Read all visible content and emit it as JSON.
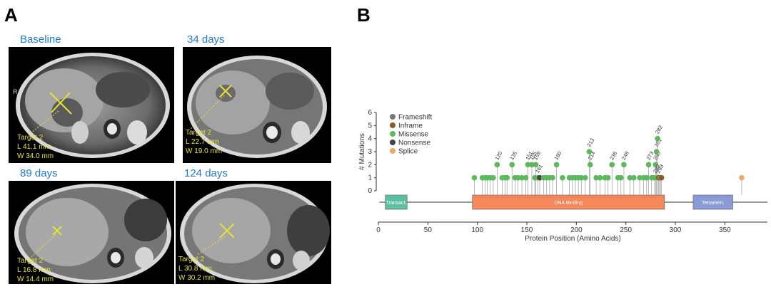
{
  "panels": {
    "a_letter": "A",
    "b_letter": "B"
  },
  "ct_scans": [
    {
      "label": "Baseline",
      "target": "Target 2",
      "length": "L 41.1 mm",
      "width": "W 34.0 mm"
    },
    {
      "label": "34 days",
      "target": "Target 2",
      "length": "L 22.7 mm",
      "width": "W 19.0 mm"
    },
    {
      "label": "89 days",
      "target": "Target 2",
      "length": "L 16.8 mm",
      "width": "W 14.4 mm"
    },
    {
      "label": "124 days",
      "target": "Target 2",
      "length": "L 30.8 mm",
      "width": "W 30.2 mm"
    }
  ],
  "ct_orientation_marker": "R",
  "chart_data": {
    "type": "lollipop",
    "xlabel": "Protein Position (Amino Acids)",
    "ylabel": "# Mutations",
    "xlim": [
      0,
      393
    ],
    "ylim": [
      0,
      6
    ],
    "xticks": [
      0,
      50,
      100,
      150,
      200,
      250,
      300,
      350
    ],
    "yticks": [
      0,
      1,
      2,
      3,
      4,
      5,
      6
    ],
    "legend": [
      {
        "name": "Frameshift",
        "color": "#777777"
      },
      {
        "name": "Inframe",
        "color": "#8b5a2b"
      },
      {
        "name": "Missense",
        "color": "#5cb85c"
      },
      {
        "name": "Nonsense",
        "color": "#444444"
      },
      {
        "name": "Splice",
        "color": "#f0a868"
      }
    ],
    "domains": [
      {
        "name": "Transact.",
        "start": 7,
        "end": 29,
        "color": "#5cbf9f"
      },
      {
        "name": "DNA Binding",
        "start": 95,
        "end": 289,
        "color": "#f4885a"
      },
      {
        "name": "Tetrameri.",
        "start": 318,
        "end": 358,
        "color": "#8a9bd6"
      }
    ],
    "mutations": [
      {
        "pos": 97,
        "count": 1,
        "type": "Missense"
      },
      {
        "pos": 105,
        "count": 1,
        "type": "Missense"
      },
      {
        "pos": 108,
        "count": 1,
        "type": "Missense"
      },
      {
        "pos": 110,
        "count": 1,
        "type": "Missense"
      },
      {
        "pos": 113,
        "count": 1,
        "type": "Missense"
      },
      {
        "pos": 116,
        "count": 1,
        "type": "Missense"
      },
      {
        "pos": 120,
        "count": 2,
        "type": "Missense",
        "label": "120"
      },
      {
        "pos": 125,
        "count": 1,
        "type": "Missense"
      },
      {
        "pos": 128,
        "count": 1,
        "type": "Missense"
      },
      {
        "pos": 130,
        "count": 1,
        "type": "Missense"
      },
      {
        "pos": 135,
        "count": 2,
        "type": "Missense",
        "label": "135"
      },
      {
        "pos": 138,
        "count": 1,
        "type": "Missense"
      },
      {
        "pos": 141,
        "count": 1,
        "type": "Missense"
      },
      {
        "pos": 145,
        "count": 1,
        "type": "Missense"
      },
      {
        "pos": 149,
        "count": 1,
        "type": "Missense"
      },
      {
        "pos": 151,
        "count": 2,
        "type": "Missense",
        "label": "151"
      },
      {
        "pos": 155,
        "count": 2,
        "type": "Missense",
        "label": "155"
      },
      {
        "pos": 158,
        "count": 1,
        "type": "Missense"
      },
      {
        "pos": 159,
        "count": 2,
        "type": "Missense",
        "label": "159"
      },
      {
        "pos": 161,
        "count": 1,
        "type": "Missense",
        "label": "161"
      },
      {
        "pos": 163,
        "count": 1,
        "type": "Nonsense"
      },
      {
        "pos": 167,
        "count": 1,
        "type": "Missense"
      },
      {
        "pos": 170,
        "count": 1,
        "type": "Missense"
      },
      {
        "pos": 173,
        "count": 1,
        "type": "Missense"
      },
      {
        "pos": 176,
        "count": 1,
        "type": "Missense"
      },
      {
        "pos": 180,
        "count": 2,
        "type": "Missense",
        "label": "180"
      },
      {
        "pos": 186,
        "count": 1,
        "type": "Missense"
      },
      {
        "pos": 193,
        "count": 1,
        "type": "Missense"
      },
      {
        "pos": 196,
        "count": 1,
        "type": "Missense"
      },
      {
        "pos": 199,
        "count": 1,
        "type": "Missense"
      },
      {
        "pos": 202,
        "count": 1,
        "type": "Missense"
      },
      {
        "pos": 205,
        "count": 1,
        "type": "Missense"
      },
      {
        "pos": 209,
        "count": 1,
        "type": "Missense"
      },
      {
        "pos": 213,
        "count": 3,
        "type": "Missense",
        "label": "213"
      },
      {
        "pos": 214,
        "count": 2,
        "type": "Missense",
        "label": "214"
      },
      {
        "pos": 220,
        "count": 1,
        "type": "Missense"
      },
      {
        "pos": 224,
        "count": 1,
        "type": "Missense"
      },
      {
        "pos": 229,
        "count": 1,
        "type": "Missense"
      },
      {
        "pos": 232,
        "count": 1,
        "type": "Missense"
      },
      {
        "pos": 236,
        "count": 2,
        "type": "Missense",
        "label": "236"
      },
      {
        "pos": 242,
        "count": 1,
        "type": "Missense"
      },
      {
        "pos": 245,
        "count": 1,
        "type": "Missense"
      },
      {
        "pos": 248,
        "count": 2,
        "type": "Missense",
        "label": "248"
      },
      {
        "pos": 254,
        "count": 1,
        "type": "Missense"
      },
      {
        "pos": 258,
        "count": 1,
        "type": "Missense"
      },
      {
        "pos": 264,
        "count": 1,
        "type": "Missense"
      },
      {
        "pos": 268,
        "count": 1,
        "type": "Missense"
      },
      {
        "pos": 271,
        "count": 1,
        "type": "Missense"
      },
      {
        "pos": 273,
        "count": 2,
        "type": "Missense",
        "label": "273"
      },
      {
        "pos": 276,
        "count": 1,
        "type": "Missense"
      },
      {
        "pos": 279,
        "count": 1,
        "type": "Missense"
      },
      {
        "pos": 280,
        "count": 2,
        "type": "Missense",
        "label": "280"
      },
      {
        "pos": 281,
        "count": 3,
        "type": "Missense",
        "label": "281"
      },
      {
        "pos": 282,
        "count": 4,
        "type": "Missense",
        "label": "282"
      },
      {
        "pos": 283,
        "count": 1,
        "type": "Inframe",
        "label": "283"
      },
      {
        "pos": 284,
        "count": 1,
        "type": "Inframe"
      },
      {
        "pos": 285,
        "count": 1,
        "type": "Missense"
      },
      {
        "pos": 286,
        "count": 1,
        "type": "Inframe"
      },
      {
        "pos": 367,
        "count": 1,
        "type": "Splice"
      }
    ],
    "extra_labels": [
      {
        "pos": 282,
        "y": 1,
        "label": "282"
      }
    ]
  }
}
